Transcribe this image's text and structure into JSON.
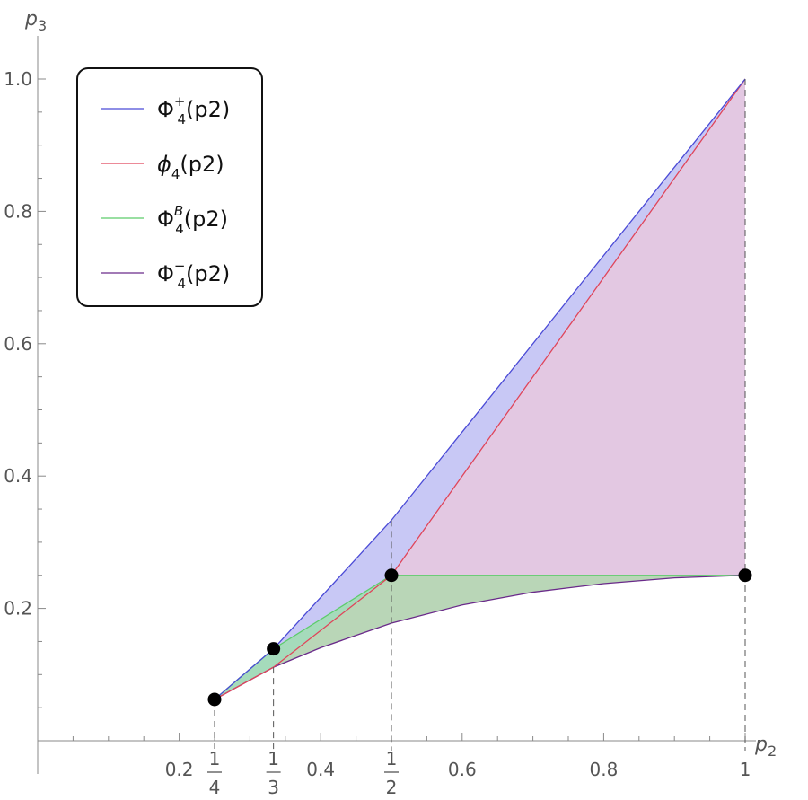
{
  "chart_data": {
    "type": "area",
    "title": "",
    "xlabel": "p2",
    "ylabel": "p3",
    "xlim": [
      0,
      1
    ],
    "ylim": [
      0,
      1
    ],
    "x_ticks": [
      "0.2",
      "0.4",
      "0.6",
      "0.8",
      "1"
    ],
    "x_tick_values": [
      0.2,
      0.4,
      0.6,
      0.8,
      1
    ],
    "x_fraction_ticks": [
      {
        "x": 0.25,
        "num": "1",
        "den": "4"
      },
      {
        "x": 0.3333,
        "num": "1",
        "den": "3"
      },
      {
        "x": 0.5,
        "num": "1",
        "den": "2"
      }
    ],
    "y_ticks": [
      "0.2",
      "0.4",
      "0.6",
      "0.8",
      "1.0"
    ],
    "y_tick_values": [
      0.2,
      0.4,
      0.6,
      0.8,
      1.0
    ],
    "legend_position": "top-left",
    "legend": [
      {
        "base": "Φ",
        "sub": "4",
        "sup": "+",
        "arg": "(p2)",
        "color": "#4b4bd6"
      },
      {
        "base": "ϕ",
        "sub": "4",
        "sup": "",
        "arg": "(p2)",
        "color": "#e0455a"
      },
      {
        "base": "Φ",
        "sub": "4",
        "sup": "B",
        "arg": "(p2)",
        "color": "#5ccc6a"
      },
      {
        "base": "Φ",
        "sub": "4",
        "sup": "−",
        "arg": "(p2)",
        "color": "#6a2a8a"
      }
    ],
    "series": [
      {
        "name": "Φ4+(p2)",
        "color": "#4b4bd6",
        "x": [
          0.25,
          0.3333,
          0.5,
          0.75,
          1.0
        ],
        "y": [
          0.0625,
          0.1389,
          0.3333,
          0.6667,
          1.0
        ]
      },
      {
        "name": "ϕ4(p2)",
        "color": "#e0455a",
        "x": [
          0.25,
          0.3333,
          0.5,
          1.0
        ],
        "y": [
          0.0625,
          0.1111,
          0.25,
          1.0
        ]
      },
      {
        "name": "Φ4B(p2)",
        "color": "#5ccc6a",
        "x": [
          0.25,
          0.3333,
          0.5,
          1.0
        ],
        "y": [
          0.0625,
          0.1389,
          0.25,
          0.25
        ]
      },
      {
        "name": "Φ4−(p2)",
        "color": "#6a2a8a",
        "x": [
          0.25,
          0.3333,
          0.4,
          0.5,
          0.6,
          0.7,
          0.8,
          0.9,
          1.0
        ],
        "y": [
          0.0625,
          0.1111,
          0.1406,
          0.1778,
          0.2052,
          0.2245,
          0.2375,
          0.2461,
          0.25
        ]
      }
    ],
    "points": [
      {
        "x": 0.25,
        "y": 0.0625
      },
      {
        "x": 0.3333,
        "y": 0.1389
      },
      {
        "x": 0.5,
        "y": 0.25
      },
      {
        "x": 1.0,
        "y": 0.25
      }
    ],
    "fills": {
      "upper": "#c8c8f5",
      "middle": "#e3c8e2",
      "lower": "#b9d6b7",
      "small": "#9fdcbc"
    },
    "grid": false
  }
}
